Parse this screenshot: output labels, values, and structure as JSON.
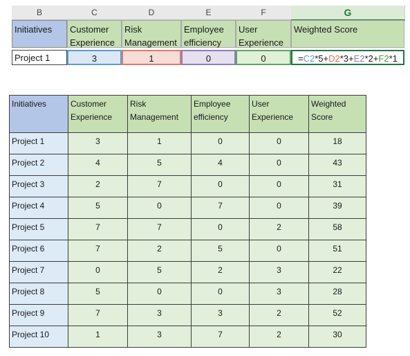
{
  "spreadsheet": {
    "column_headers": [
      "B",
      "C",
      "D",
      "E",
      "F",
      "G"
    ],
    "active_column": "G",
    "header_row": [
      "Initiatives",
      "Customer Experience",
      "Risk Management",
      "Employee efficiency",
      "User Experience",
      "Weighted Score"
    ],
    "data_row": [
      "Project 1",
      "3",
      "1",
      "0",
      "0"
    ],
    "formula": {
      "prefix": "=",
      "ref_c": "C2",
      "op_c": "*5+",
      "ref_d": "D2",
      "op_d": "*3+",
      "ref_e": "E2",
      "op_e": "*2+",
      "ref_f": "F2",
      "op_f": "*1"
    },
    "reference_colors": {
      "C2": "#5b9bd5",
      "D2": "#e06b59",
      "E2": "#8e7cc3",
      "F2": "#4e9a4e"
    }
  },
  "table": {
    "headers": [
      "Initiatives",
      "Customer Experience",
      "Risk Management",
      "Employee efficiency",
      "User Experience",
      "Weighted Score"
    ],
    "rows": [
      [
        "Project 1",
        "3",
        "1",
        "0",
        "0",
        "18"
      ],
      [
        "Project 2",
        "4",
        "5",
        "4",
        "0",
        "43"
      ],
      [
        "Project 3",
        "2",
        "7",
        "0",
        "0",
        "31"
      ],
      [
        "Project 4",
        "5",
        "0",
        "7",
        "0",
        "39"
      ],
      [
        "Project 5",
        "7",
        "7",
        "0",
        "2",
        "58"
      ],
      [
        "Project 6",
        "7",
        "2",
        "5",
        "0",
        "51"
      ],
      [
        "Project 7",
        "0",
        "5",
        "2",
        "3",
        "22"
      ],
      [
        "Project 8",
        "5",
        "0",
        "0",
        "3",
        "28"
      ],
      [
        "Project 9",
        "7",
        "3",
        "3",
        "2",
        "52"
      ],
      [
        "Project 10",
        "1",
        "3",
        "7",
        "2",
        "30"
      ]
    ],
    "colors": {
      "header_first": "#b4c6e7",
      "header": "#c6e0b4",
      "name_cell": "#ddebf7",
      "value_cell": "#e2efda"
    }
  }
}
